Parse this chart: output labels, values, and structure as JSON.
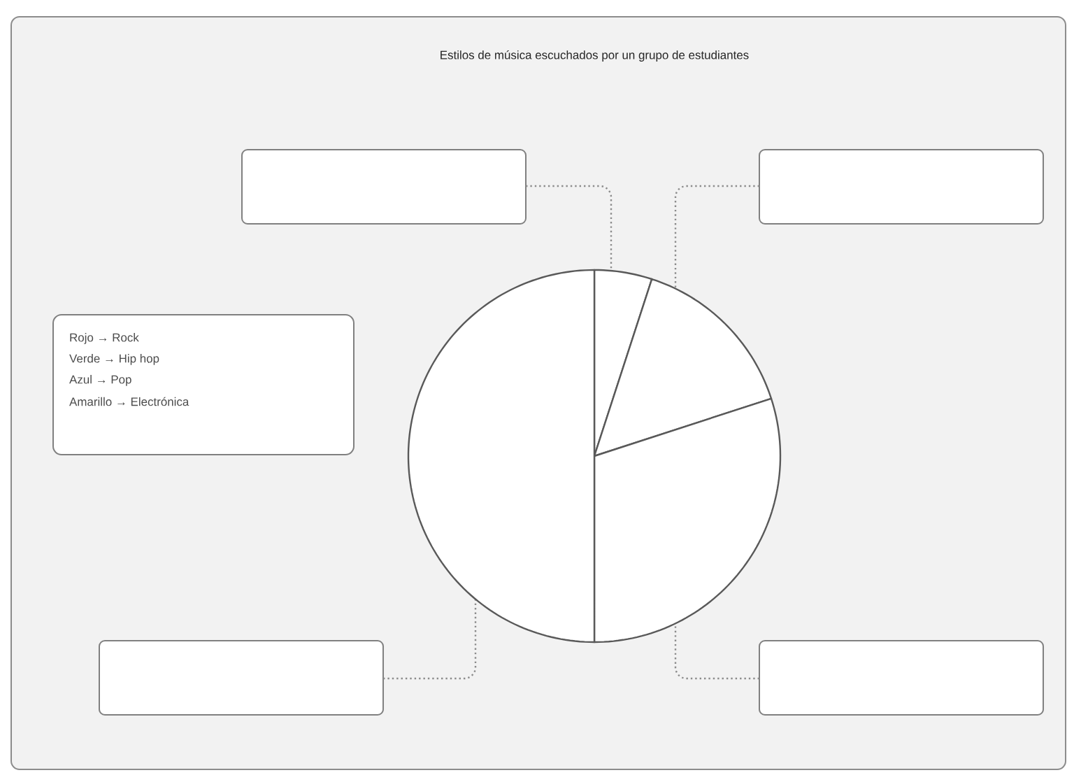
{
  "chart_data": {
    "type": "pie",
    "title": "Estilos de música escuchados por un grupo de estudiantes",
    "categories": [
      null,
      null,
      null,
      null
    ],
    "values": [
      5,
      15,
      30,
      50
    ],
    "colors": [
      "#ffffff",
      "#ffffff",
      "#ffffff",
      "#ffffff"
    ],
    "annotations": [
      "Rojo → Rock",
      "Verde → Hip hop",
      "Azul → Pop",
      "Amarillo → Electrónica"
    ]
  }
}
